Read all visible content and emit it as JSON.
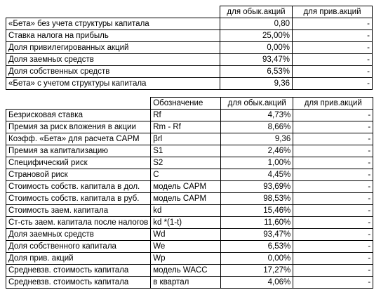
{
  "table1": {
    "header": {
      "col_common": "для обык.акций",
      "col_pref": "для прив.акций"
    },
    "rows": [
      {
        "label": "«Бета» без учета структуры капитала",
        "common": "0,80",
        "pref": "-"
      },
      {
        "label": "Ставка налога на прибыль",
        "common": "25,00%",
        "pref": "-"
      },
      {
        "label": "Доля привилегированных акций",
        "common": "0,00%",
        "pref": "-"
      },
      {
        "label": "Доля заемных средств",
        "common": "93,47%",
        "pref": "-"
      },
      {
        "label": "Доля собственных средств",
        "common": "6,53%",
        "pref": "-"
      },
      {
        "label": "«Бета» с учетом структуры капитала",
        "common": "9,36",
        "pref": "-"
      }
    ]
  },
  "table2": {
    "header": {
      "col_symbol": "Обозначение",
      "col_common": "для обык.акций",
      "col_pref": "для прив.акций"
    },
    "rows": [
      {
        "label": "Безрисковая ставка",
        "symbol": "Rf",
        "common": "4,73%",
        "pref": "-"
      },
      {
        "label": "Премия за риск вложения в акции",
        "symbol": "Rm - Rf",
        "common": "8,66%",
        "pref": "-"
      },
      {
        "label": "Коэфф. «Бета» для расчета CAPM",
        "symbol": "βrl",
        "common": "9,36",
        "pref": "-"
      },
      {
        "label": "Премия за капитализацию",
        "symbol": "S1",
        "common": "2,46%",
        "pref": "-"
      },
      {
        "label": "Специфический риск",
        "symbol": "S2",
        "common": "1,00%",
        "pref": "-"
      },
      {
        "label": "Страновой риск",
        "symbol": "C",
        "common": "4,45%",
        "pref": "-"
      },
      {
        "label": "Стоимость собств. капитала в дол.",
        "symbol": "модель CAPM",
        "common": "93,69%",
        "pref": "-"
      },
      {
        "label": "Стоимость собств. капитала в руб.",
        "symbol": "модель CAPM",
        "common": "98,53%",
        "pref": "-"
      },
      {
        "label": "Стоимость заем. капитала",
        "symbol": "kd",
        "common": "15,46%",
        "pref": "-"
      },
      {
        "label": "Ст-сть заем. капитала после налогов",
        "symbol": "kd *(1-t)",
        "common": "11,60%",
        "pref": "-"
      },
      {
        "label": "Доля заемных средств",
        "symbol": "Wd",
        "common": "93,47%",
        "pref": "-"
      },
      {
        "label": "Доля собственного капитала",
        "symbol": "We",
        "common": "6,53%",
        "pref": "-"
      },
      {
        "label": "Доля прив. акций",
        "symbol": "Wp",
        "common": "0,00%",
        "pref": "-"
      },
      {
        "label": "Средневзв. стоимость капитала",
        "symbol": "модель WACC",
        "common": "17,27%",
        "pref": "-"
      },
      {
        "label": "Средневзв. стоимость капитала",
        "symbol": "в квартал",
        "common": "4,06%",
        "pref": "-"
      }
    ]
  }
}
